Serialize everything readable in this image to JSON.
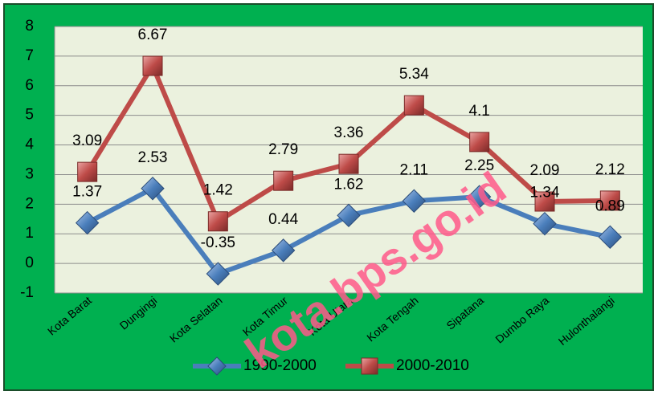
{
  "chart_data": {
    "type": "line",
    "categories": [
      "Kota Barat",
      "Dungingi",
      "Kota Selatan",
      "Kota Timur",
      "Kota Utara",
      "Kota Tengah",
      "Sipatana",
      "Dumbo Raya",
      "Hulonthalangi"
    ],
    "series": [
      {
        "name": "1990-2000",
        "color": "#4a7ebb",
        "values": [
          1.37,
          2.53,
          -0.35,
          0.44,
          1.62,
          2.11,
          2.25,
          1.34,
          0.89
        ]
      },
      {
        "name": "2000-2010",
        "color": "#be4b48",
        "values": [
          3.09,
          6.67,
          1.42,
          2.79,
          3.36,
          5.34,
          4.1,
          2.09,
          2.12
        ]
      }
    ],
    "ylim": [
      -1,
      8
    ],
    "yticks": [
      -1,
      0,
      1,
      2,
      3,
      4,
      5,
      6,
      7,
      8
    ],
    "grid": true,
    "legend": "bottom",
    "watermark": "kota.bps.go.id"
  }
}
